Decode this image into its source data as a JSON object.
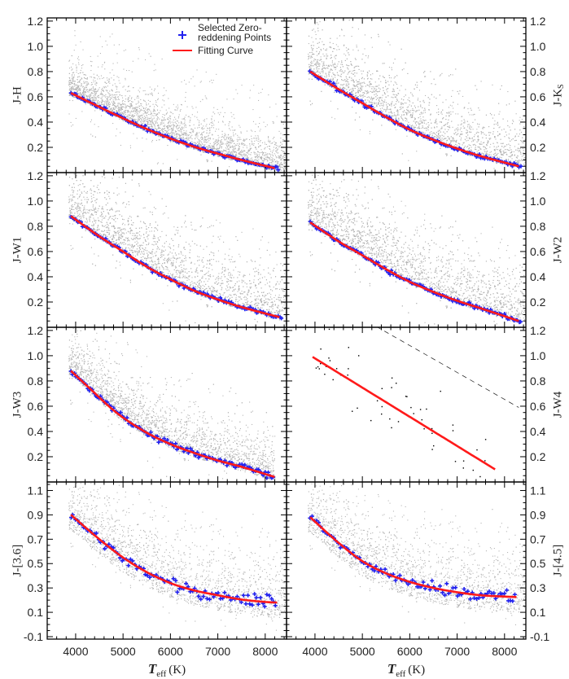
{
  "chart_data": {
    "type": "scatter",
    "xlabel": {
      "main": "T",
      "sub": "eff",
      "unit": "(K)"
    },
    "xlim": [
      3400,
      8450
    ],
    "xticks": [
      4000,
      5000,
      6000,
      7000,
      8000
    ],
    "legend": {
      "placement": "top-right",
      "points_label_1": "Selected Zero-",
      "points_label_2": "reddening Points",
      "curve_label": "Fitting Curve"
    },
    "colors": {
      "cloud": "#b4b4b4",
      "points": "#2222ee",
      "curve": "#ff1a1a",
      "w4_dots": "#000000",
      "dashed": "#333333"
    },
    "panels": [
      {
        "ylabel": "J-H",
        "side": "left",
        "ylim": [
          0,
          1.225
        ],
        "yticks": [
          "0.2",
          "0.4",
          "0.6",
          "0.8",
          "1.0",
          "1.2"
        ],
        "fit": [
          [
            3900,
            0.63
          ],
          [
            4500,
            0.52
          ],
          [
            5000,
            0.43
          ],
          [
            5500,
            0.345
          ],
          [
            6000,
            0.27
          ],
          [
            6500,
            0.205
          ],
          [
            7000,
            0.15
          ],
          [
            7500,
            0.1
          ],
          [
            8200,
            0.035
          ]
        ],
        "points_T": [
          3900,
          8300
        ],
        "points_noise": 0.008,
        "cloud": {
          "n": 3500,
          "spread": 0.16,
          "lead": 0.02
        }
      },
      {
        "ylabel": "J-K",
        "ylabel_sub": "S",
        "side": "right",
        "ylim": [
          0,
          1.225
        ],
        "yticks": [
          "0.2",
          "0.4",
          "0.6",
          "0.8",
          "1.0",
          "1.2"
        ],
        "fit": [
          [
            3900,
            0.8
          ],
          [
            4500,
            0.66
          ],
          [
            5000,
            0.55
          ],
          [
            5500,
            0.44
          ],
          [
            6000,
            0.34
          ],
          [
            6500,
            0.26
          ],
          [
            7000,
            0.19
          ],
          [
            7500,
            0.13
          ],
          [
            8300,
            0.05
          ]
        ],
        "points_T": [
          3900,
          8350
        ],
        "points_noise": 0.008,
        "cloud": {
          "n": 3500,
          "spread": 0.22,
          "lead": 0.02
        }
      },
      {
        "ylabel": "J-W1",
        "side": "left",
        "ylim": [
          0,
          1.225
        ],
        "yticks": [
          "0.2",
          "0.4",
          "0.6",
          "0.8",
          "1.0",
          "1.2"
        ],
        "fit": [
          [
            3900,
            0.88
          ],
          [
            4500,
            0.72
          ],
          [
            5000,
            0.6
          ],
          [
            5500,
            0.48
          ],
          [
            6000,
            0.38
          ],
          [
            6500,
            0.29
          ],
          [
            7000,
            0.22
          ],
          [
            7500,
            0.16
          ],
          [
            8300,
            0.08
          ]
        ],
        "points_T": [
          3900,
          8350
        ],
        "points_noise": 0.008,
        "cloud": {
          "n": 3500,
          "spread": 0.24,
          "lead": 0.02
        }
      },
      {
        "ylabel": "J-W2",
        "side": "right",
        "ylim": [
          0,
          1.225
        ],
        "yticks": [
          "0.2",
          "0.4",
          "0.6",
          "0.8",
          "1.0",
          "1.2"
        ],
        "fit": [
          [
            3900,
            0.83
          ],
          [
            4500,
            0.68
          ],
          [
            5000,
            0.57
          ],
          [
            5500,
            0.46
          ],
          [
            6000,
            0.36
          ],
          [
            6500,
            0.28
          ],
          [
            7000,
            0.21
          ],
          [
            7500,
            0.15
          ],
          [
            8300,
            0.05
          ]
        ],
        "points_T": [
          3900,
          8350
        ],
        "points_noise": 0.008,
        "cloud": {
          "n": 3500,
          "spread": 0.25,
          "lead": 0.02
        }
      },
      {
        "ylabel": "J-W3",
        "side": "left",
        "ylim": [
          0,
          1.225
        ],
        "yticks": [
          "0.2",
          "0.4",
          "0.6",
          "0.8",
          "1.0",
          "1.2"
        ],
        "fit": [
          [
            3900,
            0.88
          ],
          [
            4300,
            0.74
          ],
          [
            4700,
            0.6
          ],
          [
            5000,
            0.51
          ],
          [
            5500,
            0.39
          ],
          [
            6000,
            0.3
          ],
          [
            6500,
            0.23
          ],
          [
            7000,
            0.17
          ],
          [
            7500,
            0.12
          ],
          [
            8200,
            0.04
          ]
        ],
        "points_T": [
          3900,
          8200
        ],
        "points_noise": 0.012,
        "cloud": {
          "n": 2800,
          "spread": 0.2,
          "lead": 0.03,
          "tmax": 7600
        }
      },
      {
        "ylabel": "J-W4",
        "side": "right",
        "ylim": [
          0,
          1.225
        ],
        "yticks": [
          "0.2",
          "0.4",
          "0.6",
          "0.8",
          "1.0",
          "1.2"
        ],
        "fit": [
          [
            3950,
            0.99
          ],
          [
            7800,
            0.1
          ]
        ],
        "dashed": [
          [
            5300,
            1.23
          ],
          [
            8300,
            0.59
          ]
        ],
        "w4_dots": 55
      },
      {
        "ylabel": "J-[3.6]",
        "side": "left",
        "ylim": [
          -0.12,
          1.17
        ],
        "yticks": [
          "-0.1",
          "0.1",
          "0.3",
          "0.5",
          "0.7",
          "0.9",
          "1.1"
        ],
        "fit": [
          [
            3900,
            0.9
          ],
          [
            4500,
            0.7
          ],
          [
            5000,
            0.55
          ],
          [
            5500,
            0.43
          ],
          [
            6000,
            0.34
          ],
          [
            6500,
            0.28
          ],
          [
            7000,
            0.24
          ],
          [
            7500,
            0.205
          ],
          [
            8000,
            0.185
          ],
          [
            8250,
            0.18
          ]
        ],
        "points_T": [
          3900,
          8250
        ],
        "points_noise": 0.025,
        "cloud": {
          "n": 2200,
          "spread": 0.3,
          "lead": 0.12
        }
      },
      {
        "ylabel": "J-[4.5]",
        "side": "right",
        "ylim": [
          -0.12,
          1.17
        ],
        "yticks": [
          "-0.1",
          "0.1",
          "0.3",
          "0.5",
          "0.7",
          "0.9",
          "1.1"
        ],
        "fit": [
          [
            3900,
            0.88
          ],
          [
            4500,
            0.67
          ],
          [
            5000,
            0.52
          ],
          [
            5500,
            0.42
          ],
          [
            6000,
            0.35
          ],
          [
            6500,
            0.3
          ],
          [
            7000,
            0.265
          ],
          [
            7500,
            0.24
          ],
          [
            8250,
            0.225
          ]
        ],
        "points_T": [
          3900,
          8250
        ],
        "points_noise": 0.022,
        "cloud": {
          "n": 2200,
          "spread": 0.3,
          "lead": 0.12
        }
      }
    ]
  }
}
